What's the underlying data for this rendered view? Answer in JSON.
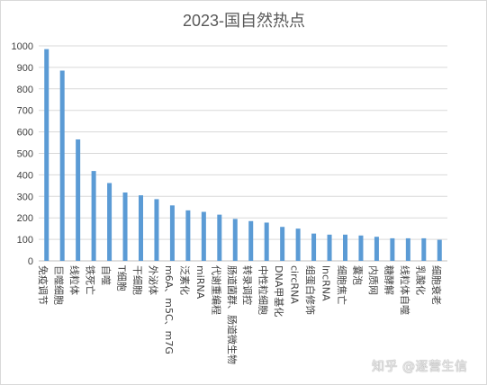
{
  "chart_data": {
    "type": "bar",
    "title": "2023-国自然热点",
    "ylim": [
      0,
      1000
    ],
    "yticks": [
      0,
      100,
      200,
      300,
      400,
      500,
      600,
      700,
      800,
      900,
      1000
    ],
    "grid": true,
    "color": "#5b9bd5",
    "categories": [
      "免疫调节",
      "巨噬细胞",
      "线粒体",
      "铁死亡",
      "自噬",
      "T细胞",
      "干细胞",
      "外泌体",
      "m6A、m5C、m7G",
      "泛素化",
      "miRNA",
      "代谢重编程",
      "肠道菌群、肠道微生物",
      "转录调控",
      "中性粒细胞",
      "DNA甲基化",
      "circRNA",
      "组蛋白修饰",
      "lncRNA",
      "细胞焦亡",
      "囊泡",
      "内质网",
      "糖酵解",
      "线粒体自噬",
      "乳酸化",
      "细胞衰老"
    ],
    "values": [
      985,
      885,
      565,
      418,
      362,
      318,
      305,
      287,
      258,
      235,
      228,
      215,
      195,
      185,
      178,
      158,
      150,
      127,
      122,
      122,
      118,
      112,
      105,
      105,
      105,
      98
    ]
  },
  "watermark": "知乎 @逐营生信"
}
